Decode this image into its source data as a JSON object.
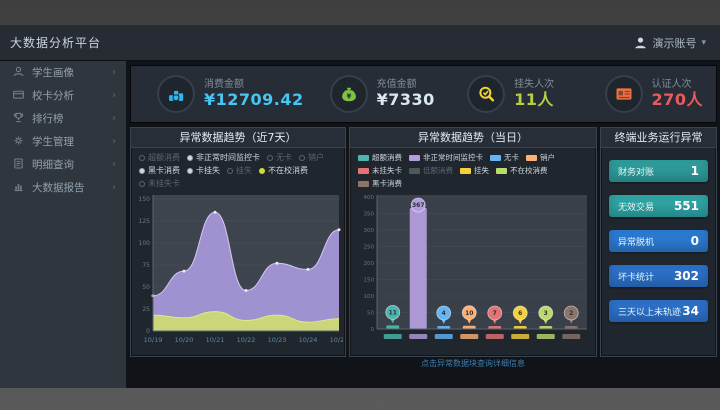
{
  "topbar": {
    "title": "大数据分析平台",
    "user": "演示账号",
    "caret": "▾"
  },
  "sidebar": {
    "arrow": "›",
    "items": [
      {
        "label": "学生画像",
        "icon": "user-icon"
      },
      {
        "label": "校卡分析",
        "icon": "card-icon"
      },
      {
        "label": "排行榜",
        "icon": "trophy-icon"
      },
      {
        "label": "学生管理",
        "icon": "gear-icon"
      },
      {
        "label": "明细查询",
        "icon": "doc-icon"
      },
      {
        "label": "大数据报告",
        "icon": "report-icon"
      }
    ]
  },
  "kpis": [
    {
      "label": "消费金额",
      "value": "¥12709.42",
      "icon": "coins-icon",
      "icon_color": "#2fb9ef",
      "value_color": "#45c7f2"
    },
    {
      "label": "充值金额",
      "value": "¥7330",
      "icon": "moneybag-icon",
      "icon_color": "#7dc242",
      "value_color": "#dbe8ee"
    },
    {
      "label": "挂失人次",
      "value": "11人",
      "icon": "hand-card-icon",
      "icon_color": "#f5d328",
      "value_color": "#b8ce42"
    },
    {
      "label": "认证人次",
      "value": "270人",
      "icon": "id-card-icon",
      "icon_color": "#f07043",
      "value_color": "#ec5b5b"
    }
  ],
  "chart_data": [
    {
      "type": "area",
      "title": "异常数据趋势（近7天）",
      "categories": [
        "10/19",
        "10/20",
        "10/21",
        "10/22",
        "10/23",
        "10/24",
        "10/25"
      ],
      "series": [
        {
          "name": "非正常时间监控卡",
          "fill": "#a496d5",
          "stroke": "#d3c8f2",
          "values": [
            40,
            68,
            135,
            46,
            77,
            70,
            115
          ]
        },
        {
          "name": "不在校消费",
          "fill": "#ccd876",
          "stroke": "#dde98c",
          "values": [
            18,
            15,
            22,
            12,
            18,
            10,
            14
          ]
        }
      ],
      "ylim": [
        0,
        150
      ],
      "yticks": [
        0,
        25,
        50,
        75,
        100,
        125,
        150
      ],
      "legend": [
        {
          "label": "超额消费",
          "active": false
        },
        {
          "label": "非正常时间监控卡",
          "active": true
        },
        {
          "label": "无卡",
          "active": false
        },
        {
          "label": "销户",
          "active": false
        },
        {
          "label": "黑卡消费",
          "active": true
        },
        {
          "label": "卡挂失",
          "active": true
        },
        {
          "label": "挂失",
          "active": false
        },
        {
          "label": "不在校消费",
          "active": true,
          "dot_color": "#cddc39"
        },
        {
          "label": "未挂失卡",
          "active": false
        }
      ]
    },
    {
      "type": "bar",
      "title": "异常数据趋势（当日）",
      "legend": [
        {
          "label": "超额消费",
          "color": "#4db6ac"
        },
        {
          "label": "非正常时间监控卡",
          "color": "#b39ddb"
        },
        {
          "label": "无卡",
          "color": "#64b5f6"
        },
        {
          "label": "销户",
          "color": "#ffb074"
        },
        {
          "label": "未挂失卡",
          "color": "#e57373"
        },
        {
          "label": "低额消费",
          "color": "#8a9499",
          "dim": true
        },
        {
          "label": "挂失",
          "color": "#f4d03f"
        },
        {
          "label": "不在校消费",
          "color": "#bcd96e"
        },
        {
          "label": "黑卡消费",
          "color": "#8d7468"
        }
      ],
      "categories": [
        "超额消费",
        "非正常时间监控卡",
        "无卡",
        "销户",
        "未挂失卡",
        "挂失",
        "不在校消费",
        "黑卡消费"
      ],
      "values": [
        11,
        367,
        4,
        10,
        7,
        6,
        3,
        2
      ],
      "colors": [
        "#4db6ac",
        "#b39ddb",
        "#64b5f6",
        "#ffb074",
        "#e57373",
        "#f4d03f",
        "#bcd96e",
        "#8d7468"
      ],
      "ylim": [
        0,
        400
      ],
      "yticks": [
        0,
        50,
        100,
        150,
        200,
        250,
        300,
        350,
        400
      ],
      "footer": "点击异常数据块查询详细信息"
    }
  ],
  "terminal_panel": {
    "title": "终端业务运行异常",
    "items": [
      {
        "label": "财务对账",
        "value": "1",
        "color": "#2e9a9a"
      },
      {
        "label": "无效交易",
        "value": "551",
        "color": "#2ea2a2"
      },
      {
        "label": "异常脱机",
        "value": "0",
        "color": "#2b79cf"
      },
      {
        "label": "坏卡统计",
        "value": "302",
        "color": "#2b6fc6"
      },
      {
        "label": "三天以上未轨迹",
        "value": "34",
        "color": "#2b6fc6"
      }
    ]
  }
}
